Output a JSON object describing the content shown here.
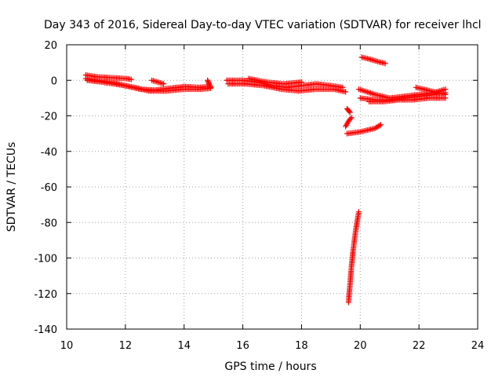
{
  "chart_data": {
    "type": "scatter",
    "title": "Day 343 of 2016, Sidereal Day-to-day VTEC variation (SDTVAR) for receiver lhcl",
    "xlabel": "GPS time / hours",
    "ylabel": "SDTVAR / TECUs",
    "xlim": [
      10,
      24
    ],
    "ylim": [
      -140,
      20
    ],
    "xticks": [
      10,
      12,
      14,
      16,
      18,
      20,
      22,
      24
    ],
    "yticks": [
      -140,
      -120,
      -100,
      -80,
      -60,
      -40,
      -20,
      0,
      20
    ],
    "grid": true,
    "marker": "plus",
    "color": "#ff0000",
    "series": [
      {
        "segments": [
          {
            "x": [
              10.65,
              11.0,
              11.5,
              12.0,
              12.2
            ],
            "y": [
              3,
              2,
              1.5,
              1,
              0.5
            ]
          },
          {
            "x": [
              10.65,
              11.0,
              11.5,
              12.0,
              12.5,
              13.0,
              13.5,
              14.0,
              14.5,
              14.9
            ],
            "y": [
              1,
              0,
              -1,
              -3,
              -5,
              -5.5,
              -4.5,
              -3.5,
              -4,
              -3.5
            ]
          },
          {
            "x": [
              10.7,
              11.2,
              11.8,
              12.3,
              12.8,
              13.4,
              14.0,
              14.6,
              14.9
            ],
            "y": [
              0,
              -1,
              -2.5,
              -4,
              -6,
              -6,
              -5,
              -5,
              -4.5
            ]
          },
          {
            "x": [
              12.9,
              13.1,
              13.3
            ],
            "y": [
              0,
              -1,
              -2
            ]
          },
          {
            "x": [
              14.8,
              14.85,
              14.9
            ],
            "y": [
              0,
              -2,
              -4
            ]
          },
          {
            "x": [
              15.45,
              16.0,
              16.5,
              17.0,
              17.5,
              18.0,
              18.5,
              19.0,
              19.4
            ],
            "y": [
              0,
              0,
              -1,
              -3,
              -4,
              -3,
              -2,
              -3,
              -4
            ]
          },
          {
            "x": [
              15.5,
              16.1,
              16.7,
              17.3,
              17.9,
              18.5,
              19.1,
              19.5
            ],
            "y": [
              -2,
              -2,
              -3,
              -5,
              -6,
              -5,
              -5,
              -6.5
            ]
          },
          {
            "x": [
              16.2,
              16.8,
              17.4,
              18.0
            ],
            "y": [
              1,
              -1,
              -2,
              -1
            ]
          },
          {
            "x": [
              19.55,
              19.6,
              19.65
            ],
            "y": [
              -16,
              -17,
              -18
            ]
          },
          {
            "x": [
              19.5,
              19.6,
              19.7
            ],
            "y": [
              -26,
              -23,
              -21
            ]
          },
          {
            "x": [
              19.55,
              20.0,
              20.5,
              20.7
            ],
            "y": [
              -30,
              -29,
              -27,
              -25
            ]
          },
          {
            "x": [
              20.05,
              20.3,
              20.6,
              20.85
            ],
            "y": [
              13,
              12,
              10.5,
              9.5
            ]
          },
          {
            "x": [
              19.95,
              20.5,
              21.0,
              21.5,
              22.0,
              22.5,
              22.9
            ],
            "y": [
              -5,
              -8,
              -10,
              -9,
              -8,
              -7,
              -5
            ]
          },
          {
            "x": [
              20.0,
              20.5,
              21.0,
              21.5,
              22.0,
              22.5,
              22.9
            ],
            "y": [
              -10,
              -11,
              -11,
              -10,
              -9,
              -8,
              -7
            ]
          },
          {
            "x": [
              20.3,
              20.8,
              21.3,
              21.8,
              22.3,
              22.9
            ],
            "y": [
              -12,
              -12,
              -11,
              -11,
              -10,
              -10
            ]
          },
          {
            "x": [
              21.9,
              22.4,
              22.9
            ],
            "y": [
              -4,
              -6,
              -8
            ]
          },
          {
            "x": [
              19.6,
              19.65,
              19.7,
              19.75,
              19.8,
              19.85,
              19.9,
              19.95
            ],
            "y": [
              -125,
              -115,
              -105,
              -97,
              -90,
              -84,
              -79,
              -74
            ]
          }
        ]
      }
    ]
  }
}
